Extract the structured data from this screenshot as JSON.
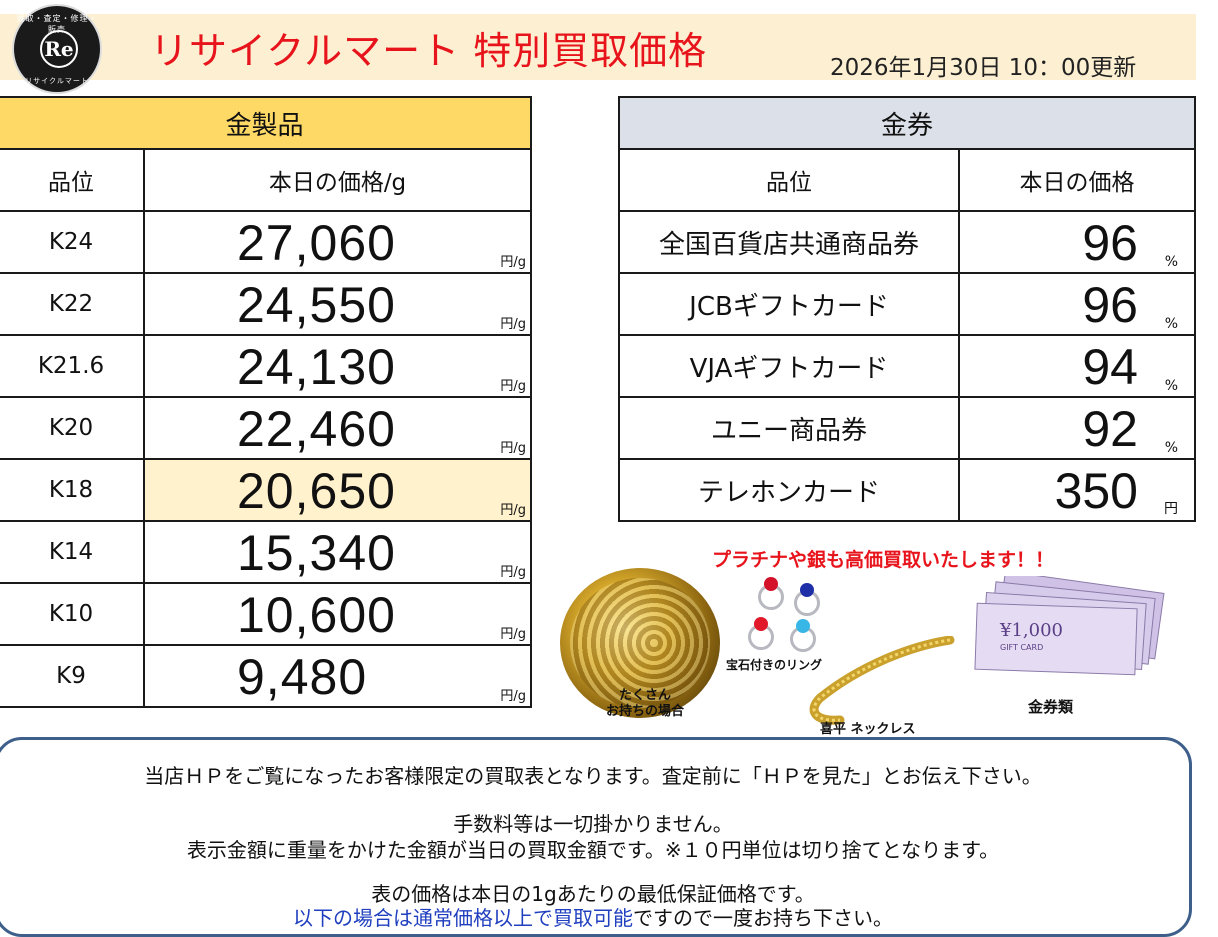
{
  "header": {
    "logo_text": "Re",
    "logo_arc_top": "買取・査定・修理・販売",
    "logo_arc_bottom": "リサイクルマート",
    "title": "リサイクルマート 特別買取価格",
    "updated": "2026年1月30日 10：00更新"
  },
  "gold": {
    "title": "金製品",
    "col_grade": "品位",
    "col_price": "本日の価格/g",
    "unit": "円/g",
    "rows": [
      {
        "grade": "K24",
        "price": "27,060"
      },
      {
        "grade": "K22",
        "price": "24,550"
      },
      {
        "grade": "K21.6",
        "price": "24,130"
      },
      {
        "grade": "K20",
        "price": "22,460"
      },
      {
        "grade": "K18",
        "price": "20,650"
      },
      {
        "grade": "K14",
        "price": "15,340"
      },
      {
        "grade": "K10",
        "price": "10,600"
      },
      {
        "grade": "K9",
        "price": "9,480"
      }
    ]
  },
  "vouchers": {
    "title": "金券",
    "col_grade": "品位",
    "col_price": "本日の価格",
    "rows": [
      {
        "name": "全国百貨店共通商品券",
        "rate": "96",
        "unit": "%"
      },
      {
        "name": "JCBギフトカード",
        "rate": "96",
        "unit": "%"
      },
      {
        "name": "VJAギフトカード",
        "rate": "94",
        "unit": "%"
      },
      {
        "name": "ユニー商品券",
        "rate": "92",
        "unit": "%"
      },
      {
        "name": "テレホンカード",
        "rate": "350",
        "unit": "円"
      }
    ]
  },
  "promo": {
    "headline": "プラチナや銀も高価買取いたします！！",
    "pile_caption_1": "たくさん",
    "pile_caption_2": "お持ちの場合",
    "ring_caption": "宝石付きのリング",
    "chain_caption": "喜平 ネックレス",
    "ticket_caption": "金券類",
    "ticket_text": "¥1,000",
    "ticket_sub": "GIFT CARD"
  },
  "notice": {
    "line1": "当店ＨＰをご覧になったお客様限定の買取表となります。査定前に「ＨＰを見た」とお伝え下さい。",
    "line2": "手数料等は一切掛かりません。",
    "line3": "表示金額に重量をかけた金額が当日の買取金額です。※１０円単位は切り捨てとなります。",
    "line4": "表の価格は本日の1gあたりの最低保証価格です。",
    "line5_blue": "以下の場合は通常価格以上で買取可能",
    "line5_rest": "ですので一度お持ち下さい。"
  },
  "colors": {
    "title_red": "#e8141c",
    "gold_header": "#ffd966",
    "highlight_row": "#fff2cc",
    "voucher_header": "#dce0e8",
    "notice_border": "#3d5f8a",
    "notice_blue": "#1f3fbf"
  }
}
